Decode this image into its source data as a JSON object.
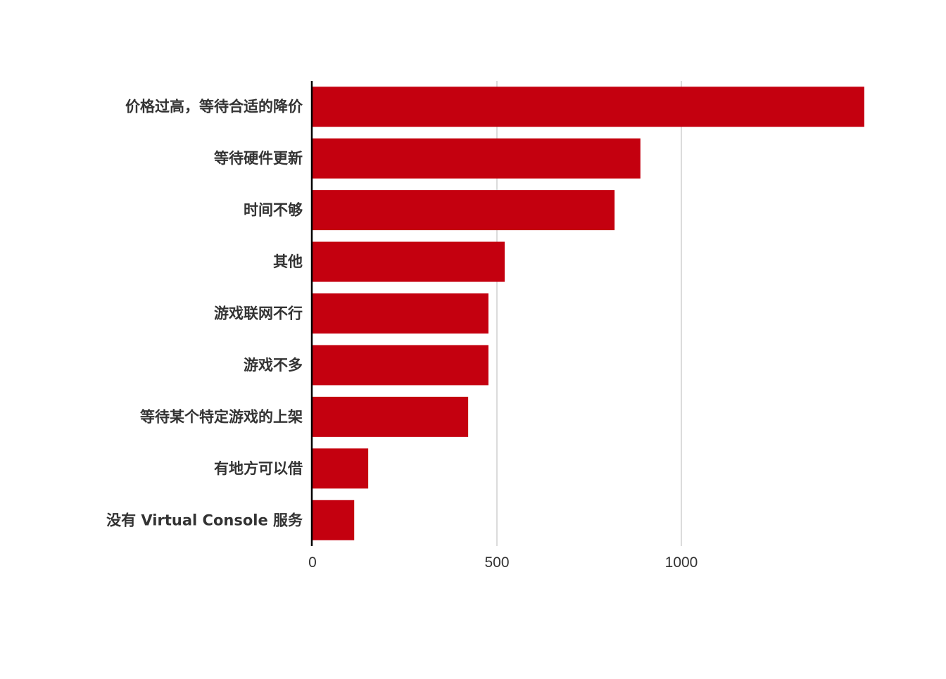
{
  "chart_data": {
    "type": "bar",
    "orientation": "horizontal",
    "title": "",
    "xlabel": "",
    "ylabel": "",
    "categories": [
      "价格过高，等待合适的降价",
      "等待硬件更新",
      "时间不够",
      "其他",
      "游戏联网不行",
      "游戏不多",
      "等待某个特定游戏的上架",
      "有地方可以借",
      "没有 Virtual Console 服务"
    ],
    "values": [
      1496,
      889,
      819,
      521,
      477,
      477,
      422,
      151,
      113
    ],
    "xlim": [
      0,
      1500
    ],
    "xticks": [
      0,
      500,
      1000
    ],
    "xtick_labels": [
      "0",
      "500",
      "1000"
    ],
    "grid": "vertical",
    "legend": "none",
    "bar_color": "#c4000f"
  }
}
